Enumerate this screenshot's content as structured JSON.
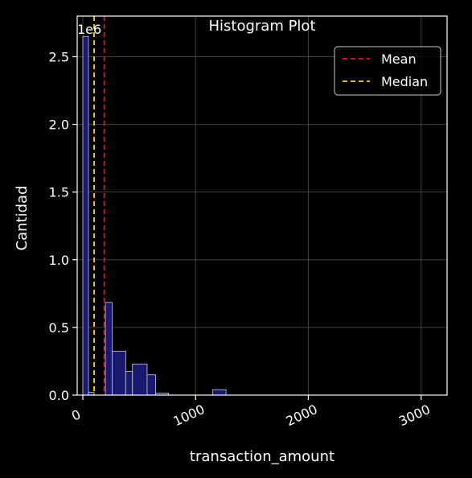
{
  "chart_data": {
    "type": "bar",
    "title": "Histogram Plot",
    "xlabel": "transaction_amount",
    "ylabel": "Cantidad",
    "y_offset_label": "1e6",
    "xlim": [
      -50,
      3230
    ],
    "ylim": [
      0,
      2.8
    ],
    "x_ticks": [
      "0",
      "1000",
      "2000",
      "3000"
    ],
    "y_ticks": [
      "0.0",
      "0.5",
      "1.0",
      "1.5",
      "2.0",
      "2.5"
    ],
    "grid": true,
    "legend_position": "top-right",
    "bins": [
      {
        "x0": 0,
        "x1": 50,
        "value": 2.65
      },
      {
        "x0": 50,
        "x1": 100,
        "value": 0.02
      },
      {
        "x0": 200,
        "x1": 260,
        "value": 0.685
      },
      {
        "x0": 260,
        "x1": 380,
        "value": 0.325
      },
      {
        "x0": 380,
        "x1": 440,
        "value": 0.175
      },
      {
        "x0": 440,
        "x1": 570,
        "value": 0.23
      },
      {
        "x0": 570,
        "x1": 645,
        "value": 0.15
      },
      {
        "x0": 645,
        "x1": 760,
        "value": 0.015
      },
      {
        "x0": 1150,
        "x1": 1270,
        "value": 0.04
      }
    ],
    "mean": 190,
    "median": 100,
    "legend": [
      {
        "label": "Mean",
        "color": "#dc143c"
      },
      {
        "label": "Median",
        "color": "#ffd700"
      }
    ],
    "colors": {
      "bar_fill": "#191970",
      "bar_edge": "#c8c8e0",
      "background": "#000000",
      "axis": "#ffffff",
      "grid": "#5a5a5a"
    }
  }
}
